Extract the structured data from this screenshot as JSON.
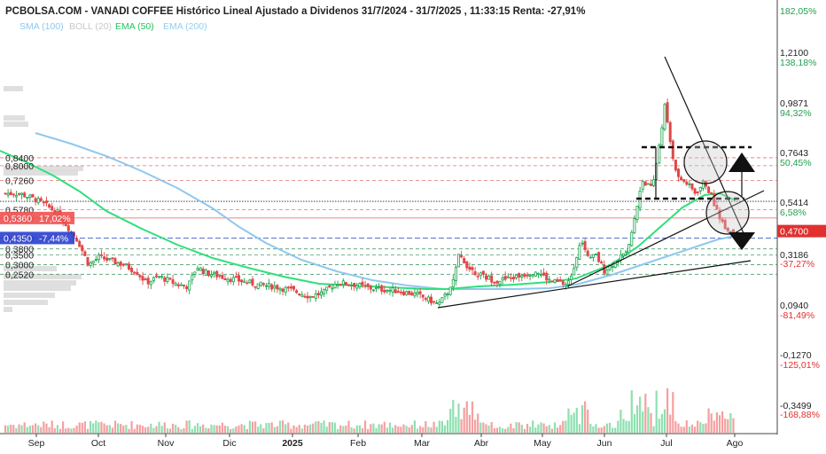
{
  "title": "PCBOLSA.COM - VANADI COFFEE Histórico Lineal Ajustado a Dividenos 31/7/2024 - 31/7/2025 , 11:33:15 Renta: -27,91%",
  "legend": [
    {
      "label": "SMA (100)",
      "color": "#8fc8ee"
    },
    {
      "label": "BOLL (20)",
      "color": "#c8c8c8"
    },
    {
      "label": "EMA (50)",
      "color": "#22c55e"
    },
    {
      "label": "EMA (200)",
      "color": "#8fd0ee"
    }
  ],
  "chart_data": {
    "type": "candlestick",
    "title": "PCBOLSA.COM - VANADI COFFEE Histórico Lineal Ajustado a Dividenos 31/7/2024 - 31/7/2025 , 11:33:15 Renta: -27,91%",
    "x_tick_labels": [
      "Sep",
      "Oct",
      "Nov",
      "Dic",
      "2025",
      "Feb",
      "Mar",
      "Abr",
      "May",
      "Jun",
      "Jul",
      "Ago"
    ],
    "right_axis": [
      {
        "label": "182,05%",
        "color": "#22a050"
      },
      {
        "label": "1,2100",
        "color": "#222222"
      },
      {
        "label": "138,18%",
        "color": "#22a050"
      },
      {
        "label": "0,9871",
        "color": "#222222"
      },
      {
        "label": "94,32%",
        "color": "#22a050"
      },
      {
        "label": "0,7643",
        "color": "#222222"
      },
      {
        "label": "50,45%",
        "color": "#22a050"
      },
      {
        "label": "0,5414",
        "color": "#222222"
      },
      {
        "label": "6,58%",
        "color": "#22a050"
      },
      {
        "label": "0,3186",
        "color": "#222222"
      },
      {
        "label": "-37,27%",
        "color": "#e03030"
      },
      {
        "label": "0,0940",
        "color": "#222222"
      },
      {
        "label": "-81,49%",
        "color": "#e03030"
      },
      {
        "label": "-0,1270",
        "color": "#222222"
      },
      {
        "label": "-125,01%",
        "color": "#e03030"
      },
      {
        "label": "-0,3499",
        "color": "#222222"
      },
      {
        "label": "-168,88%",
        "color": "#e03030"
      }
    ],
    "current_price_label": "0,4700",
    "left_levels": [
      {
        "label": "0,8400",
        "value": 0.84
      },
      {
        "label": "0,8000",
        "value": 0.8
      },
      {
        "label": "0,7260",
        "value": 0.726
      },
      {
        "label": "0,5780",
        "value": 0.578
      },
      {
        "label": "0,5360",
        "value": 0.536
      },
      {
        "label": "0,4350",
        "value": 0.435
      },
      {
        "label": "0,3800",
        "value": 0.38
      },
      {
        "label": "0,3500",
        "value": 0.35
      },
      {
        "label": "0,3000",
        "value": 0.3
      },
      {
        "label": "0,2520",
        "value": 0.252
      }
    ],
    "left_badges": [
      {
        "label": "17,02%",
        "value": 0.536
      },
      {
        "label": "-7,44%",
        "value": 0.435
      }
    ],
    "colors": {
      "up": "#16a34a",
      "down": "#e04848",
      "ema50": "#2ee07a",
      "sma100": "#8fc8ee"
    }
  }
}
